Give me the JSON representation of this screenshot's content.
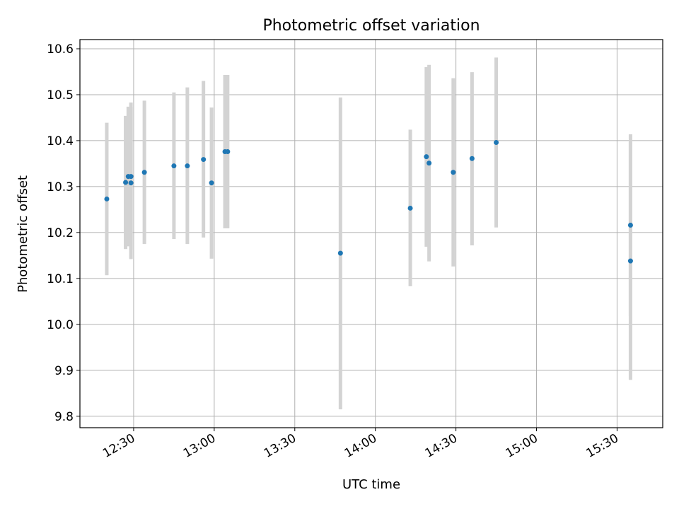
{
  "chart_data": {
    "type": "scatter",
    "title": "Photometric offset variation",
    "xlabel": "UTC time",
    "ylabel": "Photometric offset",
    "xlim": [
      "12:10",
      "15:47"
    ],
    "ylim": [
      9.775,
      10.62
    ],
    "xticks": [
      "12:30",
      "13:00",
      "13:30",
      "14:00",
      "14:30",
      "15:00",
      "15:30"
    ],
    "yticks": [
      9.8,
      9.9,
      10.0,
      10.1,
      10.2,
      10.3,
      10.4,
      10.5,
      10.6
    ],
    "ytick_labels": [
      "9.8",
      "9.9",
      "10.0",
      "10.1",
      "10.2",
      "10.3",
      "10.4",
      "10.5",
      "10.6"
    ],
    "grid": true,
    "colors": {
      "marker": "#1f77b4",
      "errorbar": "#d3d3d3",
      "grid": "#b0b0b0"
    },
    "points": [
      {
        "time": "12:20",
        "y": 10.273,
        "err_low": 10.107,
        "err_high": 10.439
      },
      {
        "time": "12:27",
        "y": 10.309,
        "err_low": 10.164,
        "err_high": 10.454
      },
      {
        "time": "12:28",
        "y": 10.322,
        "err_low": 10.17,
        "err_high": 10.474
      },
      {
        "time": "12:29",
        "y": 10.308,
        "err_low": 10.142,
        "err_high": 10.474
      },
      {
        "time": "12:29",
        "y": 10.322,
        "err_low": 10.162,
        "err_high": 10.483
      },
      {
        "time": "12:34",
        "y": 10.331,
        "err_low": 10.175,
        "err_high": 10.487
      },
      {
        "time": "12:45",
        "y": 10.345,
        "err_low": 10.186,
        "err_high": 10.505
      },
      {
        "time": "12:50",
        "y": 10.345,
        "err_low": 10.175,
        "err_high": 10.516
      },
      {
        "time": "12:56",
        "y": 10.359,
        "err_low": 10.189,
        "err_high": 10.53
      },
      {
        "time": "12:59",
        "y": 10.308,
        "err_low": 10.143,
        "err_high": 10.472
      },
      {
        "time": "13:04",
        "y": 10.376,
        "err_low": 10.209,
        "err_high": 10.543
      },
      {
        "time": "13:05",
        "y": 10.376,
        "err_low": 10.209,
        "err_high": 10.543
      },
      {
        "time": "13:47",
        "y": 10.155,
        "err_low": 9.815,
        "err_high": 10.494
      },
      {
        "time": "14:13",
        "y": 10.253,
        "err_low": 10.083,
        "err_high": 10.424
      },
      {
        "time": "14:19",
        "y": 10.365,
        "err_low": 10.169,
        "err_high": 10.56
      },
      {
        "time": "14:20",
        "y": 10.351,
        "err_low": 10.137,
        "err_high": 10.565
      },
      {
        "time": "14:29",
        "y": 10.331,
        "err_low": 10.126,
        "err_high": 10.536
      },
      {
        "time": "14:36",
        "y": 10.361,
        "err_low": 10.172,
        "err_high": 10.549
      },
      {
        "time": "14:45",
        "y": 10.396,
        "err_low": 10.211,
        "err_high": 10.581
      },
      {
        "time": "15:35",
        "y": 10.216,
        "err_low": 10.018,
        "err_high": 10.414
      },
      {
        "time": "15:35",
        "y": 10.138,
        "err_low": 9.879,
        "err_high": 10.397
      }
    ]
  }
}
